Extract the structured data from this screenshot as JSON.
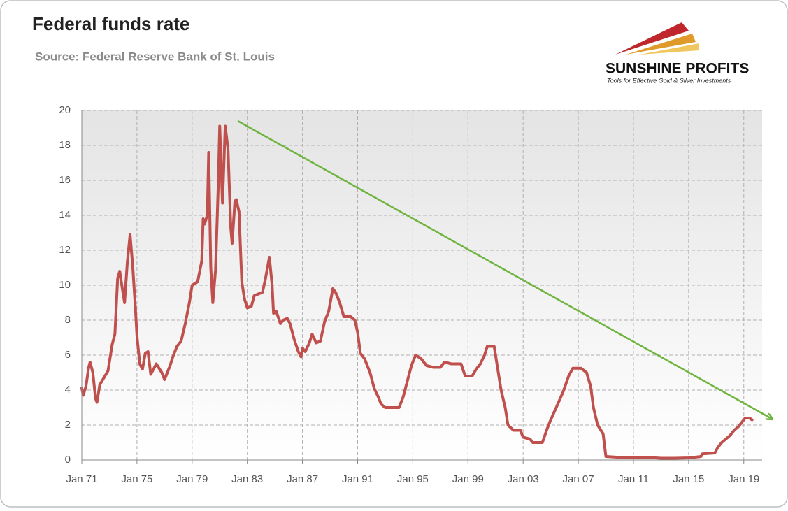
{
  "chart_data": {
    "type": "line",
    "title": "Federal funds rate",
    "subtitle": "Source: Federal Reserve Bank of St. Louis",
    "logo_name": "SUNSHINE PROFITS",
    "logo_tagline": "Tools for Effective Gold & Silver Investments",
    "grid": true,
    "xlim": [
      1971,
      2020.33
    ],
    "ylim": [
      0,
      20
    ],
    "yticks": [
      0,
      2,
      4,
      6,
      8,
      10,
      12,
      14,
      16,
      18,
      20
    ],
    "xticks": [
      {
        "value": 1971,
        "label": "Jan 71"
      },
      {
        "value": 1975,
        "label": "Jan 75"
      },
      {
        "value": 1979,
        "label": "Jan 79"
      },
      {
        "value": 1983,
        "label": "Jan 83"
      },
      {
        "value": 1987,
        "label": "Jan 87"
      },
      {
        "value": 1991,
        "label": "Jan 91"
      },
      {
        "value": 1995,
        "label": "Jan 95"
      },
      {
        "value": 1999,
        "label": "Jan 99"
      },
      {
        "value": 2003,
        "label": "Jan 03"
      },
      {
        "value": 2007,
        "label": "Jan 07"
      },
      {
        "value": 2011,
        "label": "Jan 11"
      },
      {
        "value": 2015,
        "label": "Jan 15"
      },
      {
        "value": 2019,
        "label": "Jan 19"
      }
    ],
    "x": [
      1971.0,
      1971.1,
      1971.3,
      1971.5,
      1971.6,
      1971.8,
      1972.0,
      1972.1,
      1972.3,
      1972.6,
      1972.9,
      1973.2,
      1973.4,
      1973.6,
      1973.75,
      1973.9,
      1974.1,
      1974.3,
      1974.5,
      1974.7,
      1974.9,
      1975.0,
      1975.2,
      1975.4,
      1975.6,
      1975.8,
      1976.0,
      1976.4,
      1976.8,
      1977.0,
      1977.4,
      1977.6,
      1977.9,
      1978.2,
      1978.5,
      1978.8,
      1979.0,
      1979.4,
      1979.7,
      1979.8,
      1979.9,
      1980.1,
      1980.2,
      1980.35,
      1980.5,
      1980.7,
      1980.9,
      1981.0,
      1981.2,
      1981.4,
      1981.6,
      1981.8,
      1981.9,
      1982.1,
      1982.2,
      1982.4,
      1982.6,
      1982.8,
      1983.0,
      1983.3,
      1983.5,
      1983.8,
      1984.1,
      1984.3,
      1984.6,
      1984.8,
      1984.9,
      1985.1,
      1985.4,
      1985.6,
      1985.9,
      1986.1,
      1986.4,
      1986.7,
      1986.9,
      1987.0,
      1987.2,
      1987.5,
      1987.7,
      1988.0,
      1988.3,
      1988.6,
      1988.9,
      1989.2,
      1989.4,
      1989.7,
      1990.0,
      1990.5,
      1990.8,
      1991.0,
      1991.2,
      1991.5,
      1991.9,
      1992.2,
      1992.5,
      1992.7,
      1993.0,
      1993.5,
      1994.0,
      1994.3,
      1994.6,
      1994.9,
      1995.2,
      1995.6,
      1996.0,
      1996.5,
      1997.0,
      1997.3,
      1997.8,
      1998.5,
      1998.8,
      1999.3,
      1999.6,
      1999.9,
      2000.2,
      2000.4,
      2000.9,
      2001.1,
      2001.4,
      2001.7,
      2001.9,
      2002.3,
      2002.8,
      2003.0,
      2003.5,
      2003.7,
      2004.4,
      2004.7,
      2005.0,
      2005.4,
      2005.9,
      2006.3,
      2006.6,
      2007.2,
      2007.6,
      2007.9,
      2008.1,
      2008.4,
      2008.8,
      2009.0,
      2010.0,
      2011.0,
      2012.0,
      2013.0,
      2014.0,
      2015.0,
      2015.9,
      2016.0,
      2016.9,
      2017.1,
      2017.4,
      2017.7,
      2018.0,
      2018.3,
      2018.6,
      2018.9,
      2019.1,
      2019.4,
      2019.6
    ],
    "series": [
      {
        "name": "Federal funds rate",
        "color": "#c0504d",
        "values": [
          4.1,
          3.7,
          4.2,
          5.3,
          5.6,
          5.0,
          3.5,
          3.3,
          4.3,
          4.7,
          5.1,
          6.6,
          7.2,
          10.4,
          10.8,
          10.0,
          9.0,
          11.3,
          12.9,
          11.0,
          8.5,
          7.1,
          5.5,
          5.2,
          6.1,
          6.2,
          4.9,
          5.5,
          5.0,
          4.6,
          5.4,
          5.9,
          6.5,
          6.8,
          7.8,
          9.0,
          10.0,
          10.2,
          11.4,
          13.8,
          13.5,
          14.0,
          17.6,
          11.0,
          9.0,
          10.9,
          15.9,
          19.1,
          14.7,
          19.1,
          17.8,
          13.3,
          12.4,
          14.8,
          14.9,
          14.2,
          10.2,
          9.2,
          8.7,
          8.8,
          9.4,
          9.5,
          9.6,
          10.3,
          11.6,
          10.0,
          8.4,
          8.5,
          7.8,
          8.0,
          8.1,
          7.8,
          6.9,
          6.2,
          5.9,
          6.4,
          6.2,
          6.7,
          7.2,
          6.7,
          6.8,
          7.9,
          8.5,
          9.8,
          9.6,
          9.0,
          8.2,
          8.2,
          8.0,
          7.3,
          6.1,
          5.8,
          5.0,
          4.1,
          3.6,
          3.2,
          3.0,
          3.0,
          3.0,
          3.6,
          4.5,
          5.4,
          6.0,
          5.8,
          5.4,
          5.3,
          5.3,
          5.6,
          5.5,
          5.5,
          4.8,
          4.8,
          5.2,
          5.5,
          6.0,
          6.5,
          6.5,
          5.5,
          4.0,
          3.0,
          2.0,
          1.7,
          1.7,
          1.3,
          1.2,
          1.0,
          1.0,
          1.7,
          2.3,
          3.0,
          3.9,
          4.8,
          5.25,
          5.25,
          5.0,
          4.2,
          3.0,
          2.0,
          1.5,
          0.2,
          0.15,
          0.15,
          0.15,
          0.1,
          0.1,
          0.12,
          0.2,
          0.35,
          0.4,
          0.7,
          1.0,
          1.2,
          1.4,
          1.7,
          1.9,
          2.2,
          2.4,
          2.4,
          2.3
        ]
      }
    ]
  }
}
